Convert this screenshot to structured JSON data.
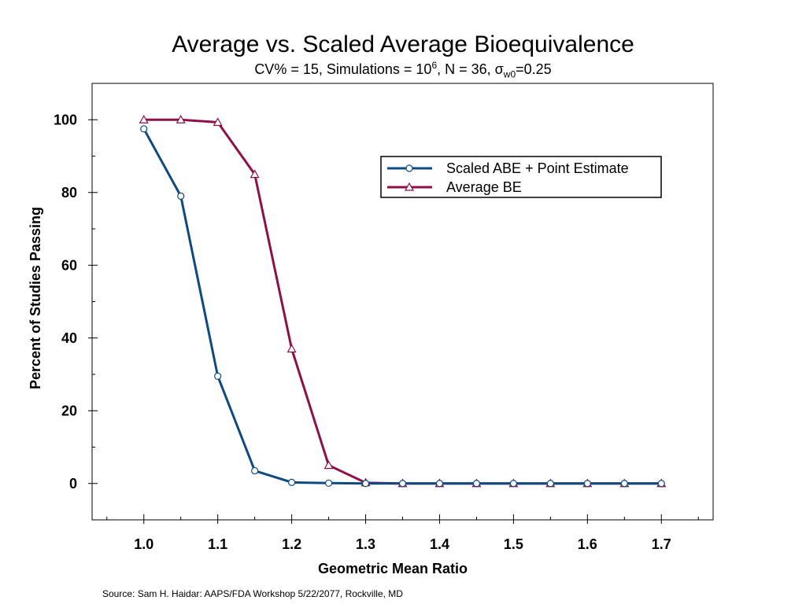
{
  "chart_data": {
    "type": "line",
    "title": "Average vs. Scaled Average Bioequivalence",
    "subtitle": {
      "prefix": "CV% = 15, Simulations = 10",
      "exponent": "6",
      "middle": ", N = 36, ",
      "sigma": "σ",
      "sigma_subscript": "w0",
      "suffix": "=0.25"
    },
    "xlabel": "Geometric Mean Ratio",
    "ylabel": "Percent of Studies Passing",
    "xlim": [
      0.93,
      1.77
    ],
    "ylim": [
      -10,
      110
    ],
    "x_ticks": [
      1.0,
      1.1,
      1.2,
      1.3,
      1.4,
      1.5,
      1.6,
      1.7
    ],
    "x_tick_labels": [
      "1.0",
      "1.1",
      "1.2",
      "1.3",
      "1.4",
      "1.5",
      "1.6",
      "1.7"
    ],
    "x_minor_ticks": [
      0.95,
      1.05,
      1.15,
      1.25,
      1.35,
      1.45,
      1.55,
      1.65,
      1.75
    ],
    "y_ticks": [
      0,
      20,
      40,
      60,
      80,
      100
    ],
    "y_tick_labels": [
      "0",
      "20",
      "40",
      "60",
      "80",
      "100"
    ],
    "y_minor_ticks": [
      10,
      30,
      50,
      70,
      90
    ],
    "grid": false,
    "legend_position": "top-right",
    "x": [
      1.0,
      1.05,
      1.1,
      1.15,
      1.2,
      1.25,
      1.3,
      1.35,
      1.4,
      1.45,
      1.5,
      1.55,
      1.6,
      1.65,
      1.7
    ],
    "series": [
      {
        "name": "Scaled ABE + Point Estimate",
        "marker": "circle",
        "color": "#0e4a80",
        "values": [
          97.5,
          79,
          29.5,
          3.5,
          0.3,
          0.1,
          0,
          0,
          0,
          0,
          0,
          0,
          0,
          0,
          0
        ]
      },
      {
        "name": "Average BE",
        "marker": "triangle",
        "color": "#8b1147",
        "values": [
          100,
          100,
          99.3,
          85,
          37,
          5,
          0.2,
          0,
          0,
          0,
          0,
          0,
          0,
          0,
          0
        ]
      }
    ]
  },
  "source_note": "Source: Sam H. Haidar:  AAPS/FDA Workshop 5/22/2077, Rockville, MD"
}
